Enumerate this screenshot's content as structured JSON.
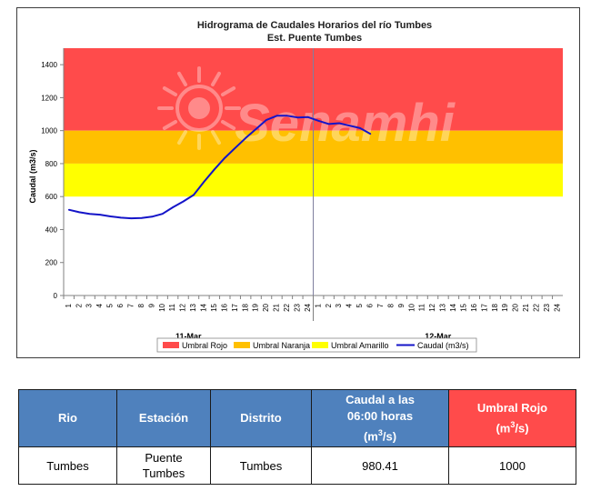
{
  "chart_data": {
    "type": "line",
    "title": "Hidrograma de Caudales Horarios del río Tumbes",
    "subtitle": "Est. Puente Tumbes",
    "ylabel": "Caudal  (m3/s)",
    "xlabel": "",
    "ylim": [
      0,
      1500
    ],
    "y_ticks": [
      "0",
      "200",
      "400",
      "600",
      "800",
      "1000",
      "1200",
      "1400"
    ],
    "x_tick_labels": [
      "1",
      "2",
      "3",
      "4",
      "5",
      "6",
      "7",
      "8",
      "9",
      "10",
      "11",
      "12",
      "13",
      "14",
      "15",
      "16",
      "17",
      "18",
      "19",
      "20",
      "21",
      "22",
      "23",
      "24",
      "1",
      "2",
      "3",
      "4",
      "5",
      "6",
      "7",
      "8",
      "9",
      "10",
      "11",
      "12",
      "13",
      "14",
      "15",
      "16",
      "17",
      "18",
      "19",
      "20",
      "21",
      "22",
      "23",
      "24"
    ],
    "days": [
      "11-Mar",
      "12-Mar"
    ],
    "grid": false,
    "legend_position": "bottom",
    "bands": [
      {
        "name": "Umbral Rojo",
        "from": 1000,
        "to": 1500,
        "color": "#ff4b4b"
      },
      {
        "name": "Umbral Naranja",
        "from": 800,
        "to": 1000,
        "color": "#ffc000"
      },
      {
        "name": "Umbral Amarillo",
        "from": 600,
        "to": 800,
        "color": "#ffff00"
      }
    ],
    "series": [
      {
        "name": "Caudal (m3/s)",
        "color": "#1414c8",
        "x": [
          1,
          2,
          3,
          4,
          5,
          6,
          7,
          8,
          9,
          10,
          11,
          12,
          13,
          14,
          15,
          16,
          17,
          18,
          19,
          20,
          21,
          22,
          23,
          24,
          25,
          26,
          27,
          28,
          29,
          30
        ],
        "values": [
          520,
          505,
          495,
          490,
          480,
          472,
          468,
          470,
          478,
          495,
          535,
          570,
          610,
          690,
          765,
          835,
          895,
          955,
          1010,
          1065,
          1090,
          1090,
          1080,
          1082,
          1060,
          1040,
          1045,
          1030,
          1015,
          980
        ]
      }
    ]
  },
  "legend": {
    "rojo": "Umbral Rojo",
    "naranja": "Umbral Naranja",
    "amarillo": "Umbral Amarillo",
    "caudal": "Caudal (m3/s)"
  },
  "watermark": "Senamhi",
  "table": {
    "headers": {
      "rio": "Rio",
      "estacion": "Estación",
      "distrito": "Distrito",
      "caudal_line1": "Caudal a las",
      "caudal_line2": "06:00 horas",
      "caudal_unit_pre": "(m",
      "caudal_unit_sup": "3",
      "caudal_unit_post": "/s)",
      "umbral_line1": "Umbral Rojo",
      "umbral_unit_pre": "(m",
      "umbral_unit_sup": "3",
      "umbral_unit_post": "/s)"
    },
    "row": {
      "rio": "Tumbes",
      "estacion_line1": "Puente",
      "estacion_line2": "Tumbes",
      "distrito": "Tumbes",
      "caudal": "980.41",
      "umbral": "1000"
    }
  }
}
